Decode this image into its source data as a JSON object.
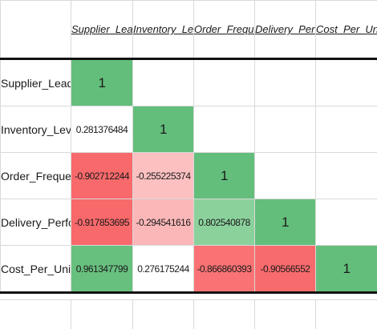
{
  "columns": [
    "Supplier_Lead_Time",
    "Inventory_Levels",
    "Order_Frequency",
    "Delivery_Performance",
    "Cost_Per_Unit"
  ],
  "rows": [
    {
      "label": "Supplier_Lead_Time",
      "cells": [
        "1",
        "",
        "",
        "",
        ""
      ],
      "colors": [
        "#63be7b",
        "#ffffff",
        "#ffffff",
        "#ffffff",
        "#ffffff"
      ]
    },
    {
      "label": "Inventory_Levels",
      "cells": [
        "0.281376484",
        "1",
        "",
        "",
        ""
      ],
      "colors": [
        "#ffffff",
        "#63be7b",
        "#ffffff",
        "#ffffff",
        "#ffffff"
      ]
    },
    {
      "label": "Order_Frequency",
      "cells": [
        "-0.902712244",
        "-0.255225374",
        "1",
        "",
        ""
      ],
      "colors": [
        "#f8696b",
        "#fcc0c1",
        "#63be7b",
        "#ffffff",
        "#ffffff"
      ]
    },
    {
      "label": "Delivery_Performance",
      "cells": [
        "-0.917853695",
        "-0.294541616",
        "0.802540878",
        "1",
        ""
      ],
      "colors": [
        "#f8696b",
        "#fbb7b8",
        "#8bd19c",
        "#63be7b",
        "#ffffff"
      ]
    },
    {
      "label": "Cost_Per_Unit",
      "cells": [
        "0.961347799",
        "0.276175244",
        "-0.866860393",
        "-0.90566552",
        "1"
      ],
      "colors": [
        "#68c07f",
        "#ffffff",
        "#f97274",
        "#f86b6d",
        "#63be7b"
      ]
    }
  ]
}
